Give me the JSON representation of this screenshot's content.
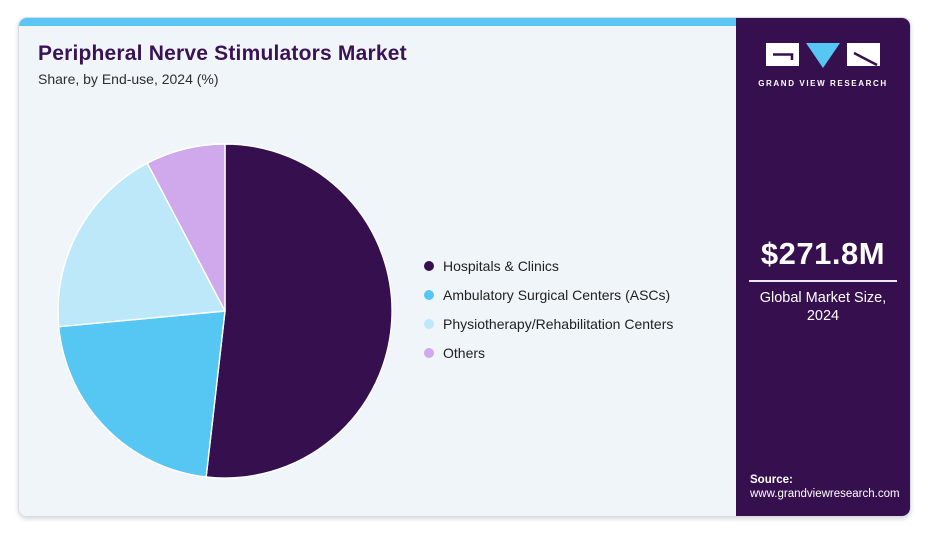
{
  "header": {
    "title": "Peripheral Nerve Stimulators Market",
    "subtitle": "Share, by End-use, 2024 (%)"
  },
  "chart_data": {
    "type": "pie",
    "title": "Peripheral Nerve Stimulators Market Share, by End-use, 2024 (%)",
    "unit": "%",
    "start_angle_deg": 0,
    "direction": "clockwise",
    "legend_position": "right",
    "slices": [
      {
        "label": "Hospitals & Clinics",
        "value": 51.8,
        "color": "#36104E"
      },
      {
        "label": "Ambulatory Surgical Centers (ASCs)",
        "value": 21.7,
        "color": "#56C6F3"
      },
      {
        "label": "Physiotherapy/Rehabilitation Centers",
        "value": 18.8,
        "color": "#BDE8F9"
      },
      {
        "label": "Others",
        "value": 7.7,
        "color": "#D0A9EC"
      }
    ]
  },
  "sidebar": {
    "brand": "GRAND VIEW RESEARCH",
    "market_size_value": "$271.8M",
    "market_size_caption": "Global Market Size, 2024",
    "source_label": "Source:",
    "source_url": "www.grandviewresearch.com"
  },
  "colors": {
    "accent_cyan": "#5BC6F3",
    "brand_purple": "#36104E",
    "panel_bg": "#F0F5FA",
    "title_purple": "#3A1354"
  }
}
